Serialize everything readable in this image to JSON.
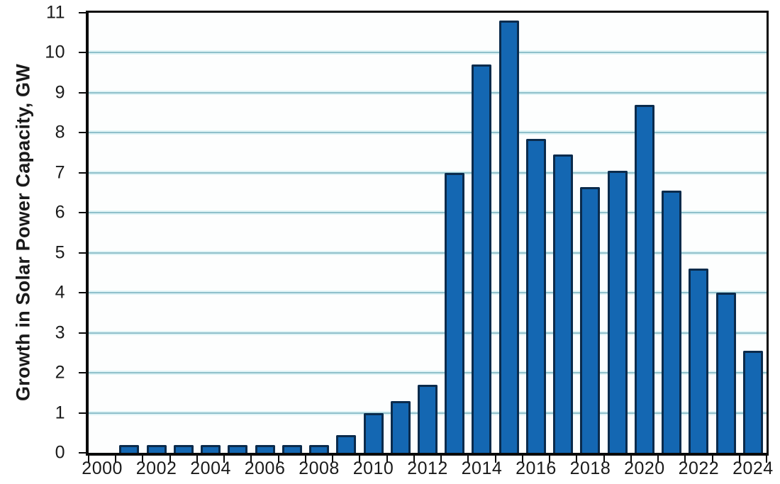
{
  "chart_data": {
    "type": "bar",
    "title": "",
    "xlabel": "",
    "ylabel": "Growth in Solar Power Capacity, GW",
    "ylim": [
      0,
      11
    ],
    "x_slots": 25,
    "grid": "horizontal-only",
    "legend": "none",
    "y_ticks": [
      0,
      1,
      2,
      3,
      4,
      5,
      6,
      7,
      8,
      9,
      10,
      11
    ],
    "categories": [
      2000,
      2001,
      2002,
      2003,
      2004,
      2005,
      2006,
      2007,
      2008,
      2009,
      2010,
      2011,
      2012,
      2013,
      2014,
      2015,
      2016,
      2017,
      2018,
      2019,
      2020,
      2021,
      2022,
      2023,
      2024
    ],
    "values": [
      0,
      0.2,
      0.2,
      0.2,
      0.2,
      0.2,
      0.2,
      0.2,
      0.2,
      0.45,
      1.0,
      1.3,
      1.7,
      7.0,
      9.7,
      10.8,
      7.85,
      7.45,
      6.65,
      7.05,
      8.7,
      6.55,
      4.6,
      4.0,
      2.55
    ],
    "x_tick_label_years": [
      2000,
      2002,
      2004,
      2006,
      2008,
      2010,
      2012,
      2014,
      2016,
      2018,
      2020,
      2022,
      2024
    ],
    "colors": {
      "bar_fill": "#1467B2",
      "bar_border": "#0B2B4C",
      "gridline": "#8FC0CB",
      "gridline_glow": "#E0F4F6",
      "axis": "#0A0A0A",
      "text": "#1A1A1A",
      "background": "#FFFFFF"
    }
  }
}
